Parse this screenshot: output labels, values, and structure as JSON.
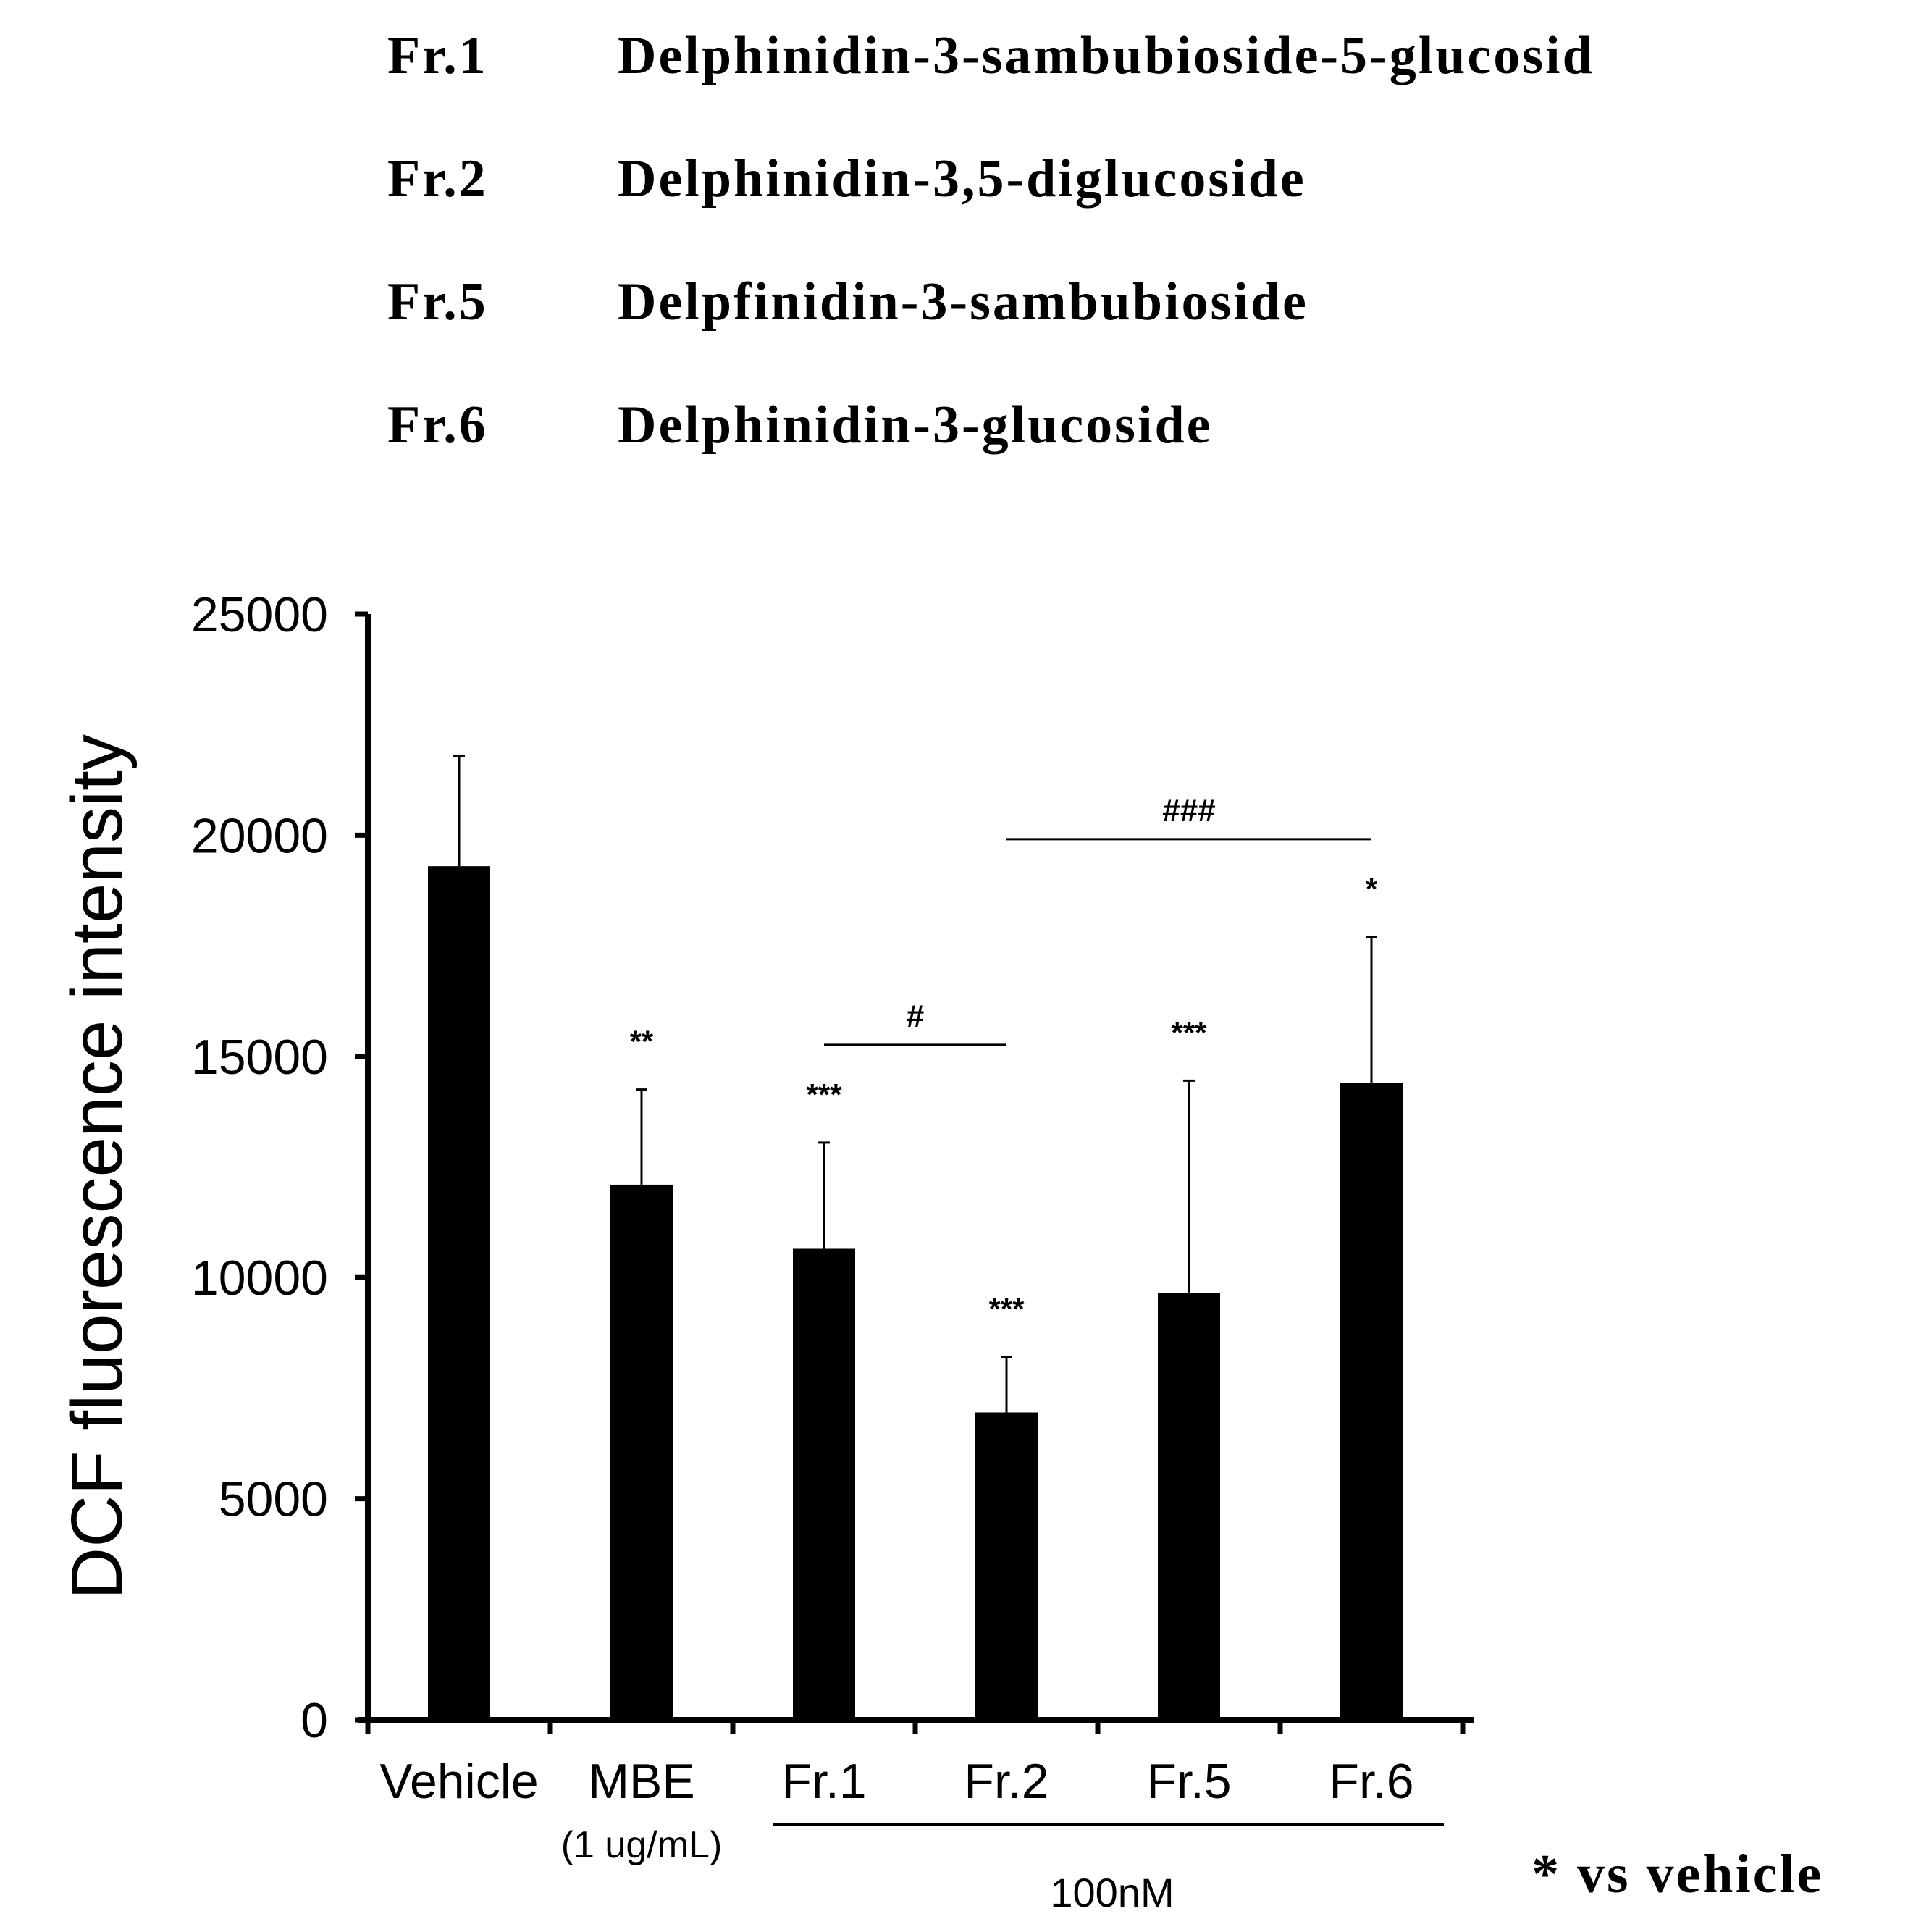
{
  "legend": {
    "items": [
      {
        "code": "Fr.1",
        "name": "Delphinidin-3-sambubioside-5-glucosid"
      },
      {
        "code": "Fr.2",
        "name": "Delphinidin-3,5-diglucoside"
      },
      {
        "code": "Fr.5",
        "name": "Delpfinidin-3-sambubioside"
      },
      {
        "code": "Fr.6",
        "name": "Delphinidin-3-glucoside"
      }
    ]
  },
  "chart_data": {
    "type": "bar",
    "ylabel": "DCF fluorescence intensity",
    "xlabel": "",
    "ylim": [
      0,
      25000
    ],
    "yticks": [
      0,
      5000,
      10000,
      15000,
      20000,
      25000
    ],
    "categories": [
      "Vehicle",
      "MBE",
      "Fr.1",
      "Fr.2",
      "Fr.5",
      "Fr.6"
    ],
    "category_sublabels": [
      "",
      "(1 ug/mL)",
      "",
      "",
      "",
      ""
    ],
    "values": [
      19300,
      12100,
      10650,
      6950,
      9650,
      14400
    ],
    "errors": [
      2500,
      2150,
      2400,
      1250,
      4800,
      3300
    ],
    "significance": [
      "",
      "**",
      "***",
      "***",
      "***",
      "*"
    ],
    "group_label": {
      "text": "100nM",
      "categories": [
        "Fr.1",
        "Fr.2",
        "Fr.5",
        "Fr.6"
      ]
    },
    "comparisons": [
      {
        "from": "Fr.1",
        "to": "Fr.2",
        "label": "#"
      },
      {
        "from": "Fr.2",
        "to": "Fr.6",
        "label": "###"
      }
    ],
    "bar_color": "#000000",
    "grid": false,
    "note": "* vs vehicle"
  }
}
